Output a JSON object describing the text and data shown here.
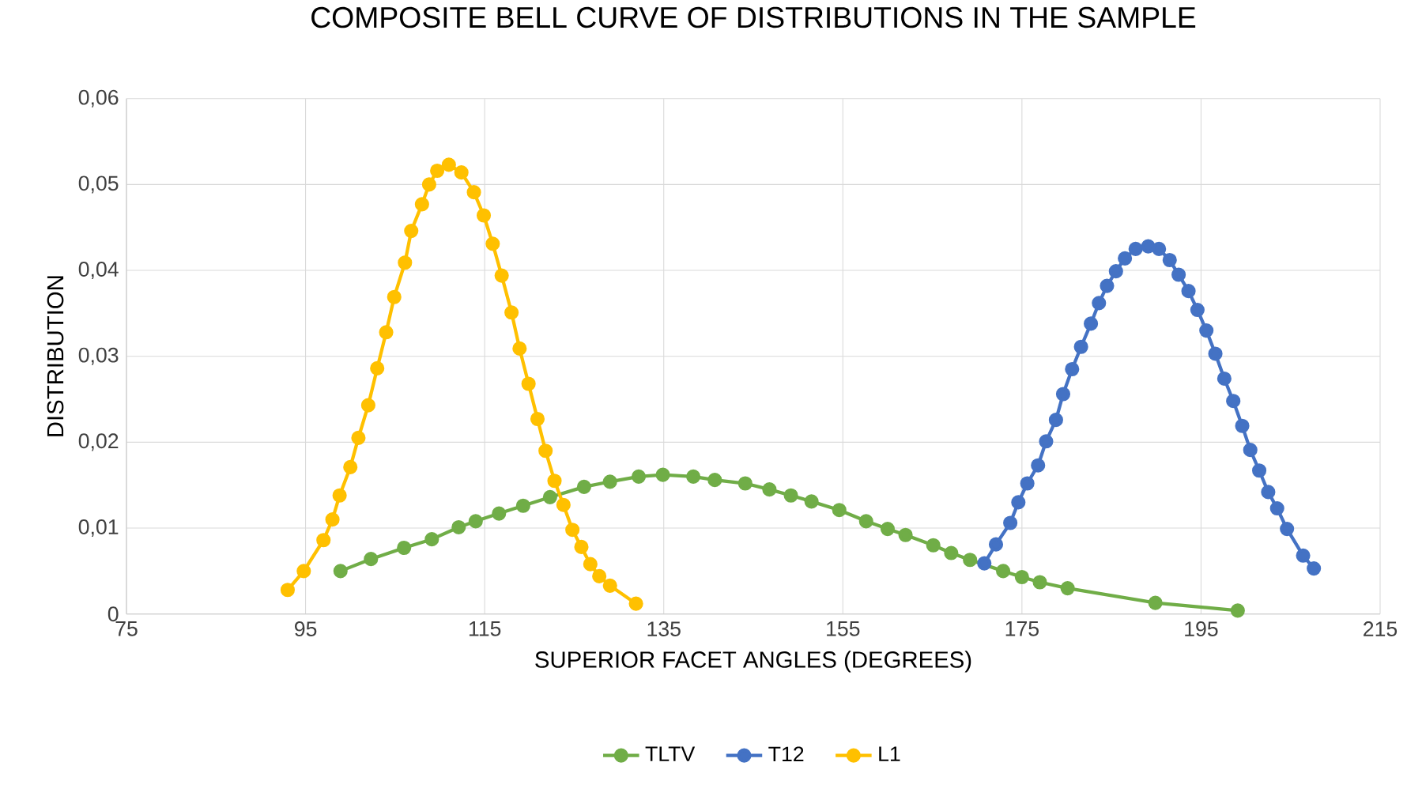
{
  "chart_data": {
    "type": "line",
    "title": "COMPOSITE BELL CURVE OF DISTRIBUTIONS IN THE SAMPLE",
    "xlabel": "SUPERIOR FACET ANGLES (DEGREES)",
    "ylabel": "DISTRIBUTION",
    "xlim": [
      75,
      215
    ],
    "xticks": [
      75,
      95,
      115,
      135,
      155,
      175,
      195,
      215
    ],
    "ylim": [
      0,
      0.06
    ],
    "yticks": [
      0,
      {
        "value": 0.01,
        "label": "0,01"
      },
      {
        "value": 0.02,
        "label": "0,02"
      },
      {
        "value": 0.03,
        "label": "0,03"
      },
      {
        "value": 0.04,
        "label": "0,04"
      },
      {
        "value": 0.05,
        "label": "0,05"
      },
      {
        "value": 0.06,
        "label": "0,06"
      }
    ],
    "grid": true,
    "legend": "bottom",
    "marker": "circle",
    "line_style": "solid",
    "series": [
      {
        "name": "TLTV",
        "color": "#70ad47",
        "x": [
          98.9,
          102.3,
          106.0,
          109.1,
          112.1,
          114.0,
          116.6,
          119.3,
          122.3,
          126.1,
          129.0,
          132.2,
          134.9,
          138.3,
          140.7,
          144.1,
          146.8,
          149.2,
          151.5,
          154.6,
          157.6,
          160.0,
          162.0,
          165.1,
          167.1,
          169.2,
          172.9,
          175.0,
          177.0,
          180.1,
          189.9,
          199.1
        ],
        "values": [
          0.005,
          0.0064,
          0.0077,
          0.0087,
          0.0101,
          0.0108,
          0.0117,
          0.0126,
          0.0136,
          0.0148,
          0.0154,
          0.016,
          0.0162,
          0.016,
          0.0156,
          0.0152,
          0.0145,
          0.0138,
          0.0131,
          0.0121,
          0.0108,
          0.0099,
          0.0092,
          0.008,
          0.0071,
          0.0063,
          0.005,
          0.0043,
          0.0037,
          0.003,
          0.0013,
          0.0004
        ]
      },
      {
        "name": "T12",
        "color": "#4472c4",
        "x": [
          170.8,
          172.1,
          173.7,
          174.6,
          175.6,
          176.8,
          177.7,
          178.8,
          179.6,
          180.6,
          181.6,
          182.7,
          183.6,
          184.5,
          185.5,
          186.5,
          187.7,
          189.1,
          190.3,
          191.5,
          192.5,
          193.6,
          194.6,
          195.6,
          196.6,
          197.6,
          198.6,
          199.6,
          200.5,
          201.5,
          202.5,
          203.5,
          204.6,
          206.4,
          207.6
        ],
        "values": [
          0.0059,
          0.0081,
          0.0106,
          0.013,
          0.0152,
          0.0173,
          0.0201,
          0.0226,
          0.0256,
          0.0285,
          0.0311,
          0.0338,
          0.0362,
          0.0382,
          0.0399,
          0.0414,
          0.0425,
          0.0428,
          0.0425,
          0.0412,
          0.0395,
          0.0376,
          0.0354,
          0.033,
          0.0303,
          0.0274,
          0.0248,
          0.0219,
          0.0191,
          0.0167,
          0.0142,
          0.0123,
          0.0099,
          0.0068,
          0.0053
        ]
      },
      {
        "name": "L1",
        "color": "#ffc000",
        "x": [
          93.0,
          94.8,
          97.0,
          98.0,
          98.8,
          100.0,
          100.9,
          102.0,
          103.0,
          104.0,
          104.9,
          106.1,
          106.8,
          108.0,
          108.8,
          109.7,
          111.0,
          112.4,
          113.8,
          114.9,
          115.9,
          116.9,
          118.0,
          118.9,
          119.9,
          120.9,
          121.8,
          122.8,
          123.8,
          124.8,
          125.8,
          126.8,
          127.8,
          129.0,
          131.9
        ],
        "values": [
          0.0028,
          0.005,
          0.0086,
          0.011,
          0.0138,
          0.0171,
          0.0205,
          0.0243,
          0.0286,
          0.0328,
          0.0369,
          0.0409,
          0.0446,
          0.0477,
          0.05,
          0.0516,
          0.0523,
          0.0514,
          0.0491,
          0.0464,
          0.0431,
          0.0394,
          0.0351,
          0.0309,
          0.0268,
          0.0227,
          0.019,
          0.0155,
          0.0127,
          0.0098,
          0.0078,
          0.0058,
          0.0044,
          0.0033,
          0.0012
        ]
      }
    ]
  }
}
